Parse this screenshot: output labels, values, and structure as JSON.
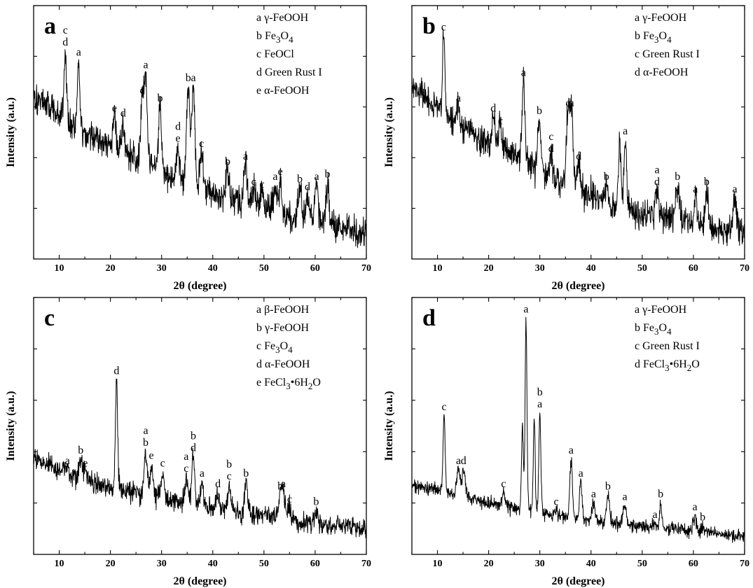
{
  "figure": {
    "xlabel": "2θ (degree)",
    "ylabel": "Intensity (a.u.)"
  },
  "chart_data": [
    {
      "type": "line",
      "panel": "a",
      "xlabel": "2θ (degree)",
      "ylabel": "Intensity (a.u.)",
      "xlim": [
        5,
        70
      ],
      "xticks": [
        10,
        20,
        30,
        40,
        50,
        60,
        70
      ],
      "ylim": [
        0,
        100
      ],
      "y_tick_labels": false,
      "legend": [
        "a γ-FeOOH",
        "b Fe3O4",
        "c FeOCl",
        "d Green Rust I",
        "e α-FeOOH"
      ],
      "baseline": [
        [
          5,
          65
        ],
        [
          10,
          57
        ],
        [
          15,
          50
        ],
        [
          20,
          44
        ],
        [
          25,
          39
        ],
        [
          30,
          34
        ],
        [
          35,
          30
        ],
        [
          40,
          26
        ],
        [
          45,
          23
        ],
        [
          50,
          20
        ],
        [
          55,
          17
        ],
        [
          60,
          15
        ],
        [
          65,
          12
        ],
        [
          70,
          10
        ]
      ],
      "noise": 6,
      "peaks": [
        {
          "x": 11.2,
          "y": 82,
          "w": 0.25,
          "labels": [
            "c",
            "d"
          ]
        },
        {
          "x": 13.8,
          "y": 78,
          "w": 0.25,
          "labels": [
            "a"
          ]
        },
        {
          "x": 20.8,
          "y": 56,
          "w": 0.3,
          "labels": [
            "e"
          ]
        },
        {
          "x": 22.5,
          "y": 54,
          "w": 0.3,
          "labels": [
            "d"
          ]
        },
        {
          "x": 26.2,
          "y": 63,
          "w": 0.3,
          "labels": [
            "c"
          ]
        },
        {
          "x": 26.9,
          "y": 73,
          "w": 0.3,
          "labels": [
            "a"
          ]
        },
        {
          "x": 29.7,
          "y": 60,
          "w": 0.3,
          "labels": [
            "b"
          ]
        },
        {
          "x": 33.2,
          "y": 44,
          "w": 0.3,
          "labels": [
            "d",
            "e"
          ]
        },
        {
          "x": 35.2,
          "y": 68,
          "w": 0.3,
          "labels": [
            "b"
          ]
        },
        {
          "x": 36.2,
          "y": 68,
          "w": 0.3,
          "labels": [
            "a"
          ]
        },
        {
          "x": 37.8,
          "y": 42,
          "w": 0.3,
          "labels": [
            "c"
          ]
        },
        {
          "x": 42.9,
          "y": 35,
          "w": 0.3,
          "labels": [
            "b"
          ]
        },
        {
          "x": 46.4,
          "y": 37,
          "w": 0.3,
          "labels": [
            "a"
          ]
        },
        {
          "x": 48.0,
          "y": 27,
          "w": 0.3,
          "labels": [
            "c"
          ]
        },
        {
          "x": 49.6,
          "y": 26,
          "w": 0.3,
          "labels": [
            "c"
          ]
        },
        {
          "x": 52.2,
          "y": 29,
          "w": 0.3,
          "labels": [
            "a"
          ]
        },
        {
          "x": 53.2,
          "y": 31,
          "w": 0.3,
          "labels": [
            "e"
          ]
        },
        {
          "x": 57.0,
          "y": 28,
          "w": 0.3,
          "labels": [
            "b"
          ]
        },
        {
          "x": 58.5,
          "y": 25,
          "w": 0.3,
          "labels": [
            "d"
          ]
        },
        {
          "x": 60.3,
          "y": 29,
          "w": 0.3,
          "labels": [
            "a"
          ]
        },
        {
          "x": 62.4,
          "y": 30,
          "w": 0.3,
          "labels": [
            "b"
          ]
        }
      ]
    },
    {
      "type": "line",
      "panel": "b",
      "xlabel": "2θ (degree)",
      "ylabel": "Intensity (a.u.)",
      "xlim": [
        5,
        70
      ],
      "xticks": [
        10,
        20,
        30,
        40,
        50,
        60,
        70
      ],
      "ylim": [
        0,
        100
      ],
      "y_tick_labels": false,
      "legend": [
        "a γ-FeOOH",
        "b Fe3O4",
        "c Green Rust I",
        "d α-FeOOH"
      ],
      "baseline": [
        [
          5,
          68
        ],
        [
          10,
          60
        ],
        [
          15,
          52
        ],
        [
          20,
          46
        ],
        [
          25,
          40
        ],
        [
          30,
          35
        ],
        [
          35,
          30
        ],
        [
          40,
          25
        ],
        [
          45,
          21
        ],
        [
          50,
          18
        ],
        [
          55,
          16
        ],
        [
          60,
          14
        ],
        [
          65,
          12
        ],
        [
          70,
          10
        ]
      ],
      "noise": 6,
      "peaks": [
        {
          "x": 11.2,
          "y": 88,
          "w": 0.2,
          "labels": [
            "c"
          ]
        },
        {
          "x": 14.1,
          "y": 60,
          "w": 0.25,
          "labels": [
            "a"
          ]
        },
        {
          "x": 20.9,
          "y": 56,
          "w": 0.3,
          "labels": [
            "d"
          ]
        },
        {
          "x": 22.3,
          "y": 51,
          "w": 0.3,
          "labels": [
            "c"
          ]
        },
        {
          "x": 26.8,
          "y": 70,
          "w": 0.3,
          "labels": [
            "a"
          ]
        },
        {
          "x": 29.9,
          "y": 55,
          "w": 0.3,
          "labels": [
            "b"
          ]
        },
        {
          "x": 32.2,
          "y": 40,
          "w": 0.3,
          "labels": [
            "c",
            "d"
          ]
        },
        {
          "x": 35.5,
          "y": 58,
          "w": 0.3,
          "labels": [
            "c"
          ]
        },
        {
          "x": 36.2,
          "y": 58,
          "w": 0.3,
          "labels": [
            "a"
          ]
        },
        {
          "x": 37.6,
          "y": 37,
          "w": 0.3,
          "labels": [
            "d"
          ]
        },
        {
          "x": 43.0,
          "y": 29,
          "w": 0.3,
          "labels": [
            "b"
          ]
        },
        {
          "x": 45.6,
          "y": 46,
          "w": 0.25,
          "labels": []
        },
        {
          "x": 46.7,
          "y": 47,
          "w": 0.25,
          "labels": [
            "a"
          ]
        },
        {
          "x": 52.9,
          "y": 27,
          "w": 0.3,
          "labels": [
            "a",
            "d"
          ]
        },
        {
          "x": 56.9,
          "y": 29,
          "w": 0.3,
          "labels": [
            "b"
          ]
        },
        {
          "x": 60.4,
          "y": 24,
          "w": 0.3,
          "labels": [
            "a"
          ]
        },
        {
          "x": 62.6,
          "y": 27,
          "w": 0.3,
          "labels": [
            "b"
          ]
        },
        {
          "x": 68.1,
          "y": 24,
          "w": 0.3,
          "labels": [
            "a"
          ]
        }
      ]
    },
    {
      "type": "line",
      "panel": "c",
      "xlabel": "2θ (degree)",
      "ylabel": "Intensity (a.u.)",
      "xlim": [
        5,
        70
      ],
      "xticks": [
        10,
        20,
        30,
        40,
        50,
        60,
        70
      ],
      "ylim": [
        0,
        100
      ],
      "y_tick_labels": false,
      "legend": [
        "a β-FeOOH",
        "b γ-FeOOH",
        "c Fe3O4",
        "d α-FeOOH",
        "e FeCl3•6H2O"
      ],
      "baseline": [
        [
          5,
          38
        ],
        [
          10,
          33
        ],
        [
          15,
          29
        ],
        [
          20,
          26
        ],
        [
          25,
          24
        ],
        [
          30,
          22
        ],
        [
          35,
          20
        ],
        [
          40,
          18
        ],
        [
          45,
          16
        ],
        [
          50,
          15
        ],
        [
          55,
          13
        ],
        [
          60,
          12
        ],
        [
          65,
          11
        ],
        [
          70,
          10
        ]
      ],
      "noise": 4,
      "peaks": [
        {
          "x": 11.6,
          "y": 33,
          "w": 0.3,
          "labels": [
            "a"
          ]
        },
        {
          "x": 14.2,
          "y": 37,
          "w": 0.3,
          "labels": [
            "b"
          ]
        },
        {
          "x": 15.1,
          "y": 32,
          "w": 0.3,
          "labels": [
            "e"
          ]
        },
        {
          "x": 21.2,
          "y": 68,
          "w": 0.22,
          "labels": [
            "d"
          ]
        },
        {
          "x": 26.9,
          "y": 40,
          "w": 0.3,
          "labels": [
            "a",
            "b"
          ]
        },
        {
          "x": 28.0,
          "y": 35,
          "w": 0.3,
          "labels": [
            "e"
          ]
        },
        {
          "x": 30.2,
          "y": 32,
          "w": 0.3,
          "labels": [
            "c"
          ]
        },
        {
          "x": 34.8,
          "y": 30,
          "w": 0.3,
          "labels": [
            "a",
            "c"
          ]
        },
        {
          "x": 36.2,
          "y": 38,
          "w": 0.3,
          "labels": [
            "b",
            "d"
          ]
        },
        {
          "x": 37.9,
          "y": 28,
          "w": 0.3,
          "labels": [
            "a"
          ]
        },
        {
          "x": 41.0,
          "y": 24,
          "w": 0.3,
          "labels": [
            "d"
          ]
        },
        {
          "x": 43.2,
          "y": 27,
          "w": 0.3,
          "labels": [
            "b",
            "c"
          ]
        },
        {
          "x": 46.5,
          "y": 28,
          "w": 0.3,
          "labels": [
            "b"
          ]
        },
        {
          "x": 53.2,
          "y": 23,
          "w": 0.3,
          "labels": [
            "b"
          ]
        },
        {
          "x": 53.8,
          "y": 24,
          "w": 0.3,
          "labels": [
            "a"
          ]
        },
        {
          "x": 55.0,
          "y": 18,
          "w": 0.3,
          "labels": [
            "c"
          ]
        },
        {
          "x": 60.2,
          "y": 17,
          "w": 0.3,
          "labels": [
            "b"
          ]
        }
      ]
    },
    {
      "type": "line",
      "panel": "d",
      "xlabel": "2θ (degree)",
      "ylabel": "Intensity (a.u.)",
      "xlim": [
        5,
        70
      ],
      "xticks": [
        10,
        20,
        30,
        40,
        50,
        60,
        70
      ],
      "ylim": [
        0,
        100
      ],
      "y_tick_labels": false,
      "legend": [
        "a γ-FeOOH",
        "b Fe3O4",
        "c Green Rust I",
        "d FeCl3•6H2O"
      ],
      "baseline": [
        [
          5,
          27
        ],
        [
          10,
          25
        ],
        [
          15,
          23
        ],
        [
          20,
          20
        ],
        [
          25,
          18
        ],
        [
          30,
          16
        ],
        [
          35,
          15
        ],
        [
          40,
          13
        ],
        [
          45,
          12
        ],
        [
          50,
          11
        ],
        [
          55,
          10
        ],
        [
          60,
          9
        ],
        [
          65,
          8
        ],
        [
          70,
          7
        ]
      ],
      "noise": 2.5,
      "peaks": [
        {
          "x": 11.3,
          "y": 54,
          "w": 0.2,
          "labels": [
            "c"
          ]
        },
        {
          "x": 14.1,
          "y": 33,
          "w": 0.3,
          "labels": [
            "a"
          ]
        },
        {
          "x": 15.1,
          "y": 33,
          "w": 0.3,
          "labels": [
            "d"
          ]
        },
        {
          "x": 22.9,
          "y": 24,
          "w": 0.3,
          "labels": [
            "c"
          ]
        },
        {
          "x": 26.6,
          "y": 50,
          "w": 0.18,
          "labels": []
        },
        {
          "x": 27.3,
          "y": 92,
          "w": 0.18,
          "labels": [
            "a"
          ]
        },
        {
          "x": 28.9,
          "y": 54,
          "w": 0.18,
          "labels": []
        },
        {
          "x": 30.0,
          "y": 55,
          "w": 0.2,
          "labels": [
            "b",
            "a"
          ]
        },
        {
          "x": 33.2,
          "y": 17,
          "w": 0.3,
          "labels": [
            "c"
          ]
        },
        {
          "x": 36.1,
          "y": 37,
          "w": 0.25,
          "labels": [
            "a"
          ]
        },
        {
          "x": 38.0,
          "y": 28,
          "w": 0.25,
          "labels": [
            "a"
          ]
        },
        {
          "x": 40.5,
          "y": 20,
          "w": 0.3,
          "labels": [
            "a"
          ]
        },
        {
          "x": 43.3,
          "y": 23,
          "w": 0.3,
          "labels": [
            "b"
          ]
        },
        {
          "x": 46.6,
          "y": 19,
          "w": 0.3,
          "labels": [
            "a"
          ]
        },
        {
          "x": 52.5,
          "y": 12,
          "w": 0.3,
          "labels": [
            "a"
          ]
        },
        {
          "x": 53.6,
          "y": 20,
          "w": 0.2,
          "labels": [
            "b"
          ]
        },
        {
          "x": 60.3,
          "y": 15,
          "w": 0.3,
          "labels": [
            "a"
          ]
        },
        {
          "x": 61.8,
          "y": 11,
          "w": 0.3,
          "labels": [
            "b"
          ]
        }
      ]
    }
  ]
}
